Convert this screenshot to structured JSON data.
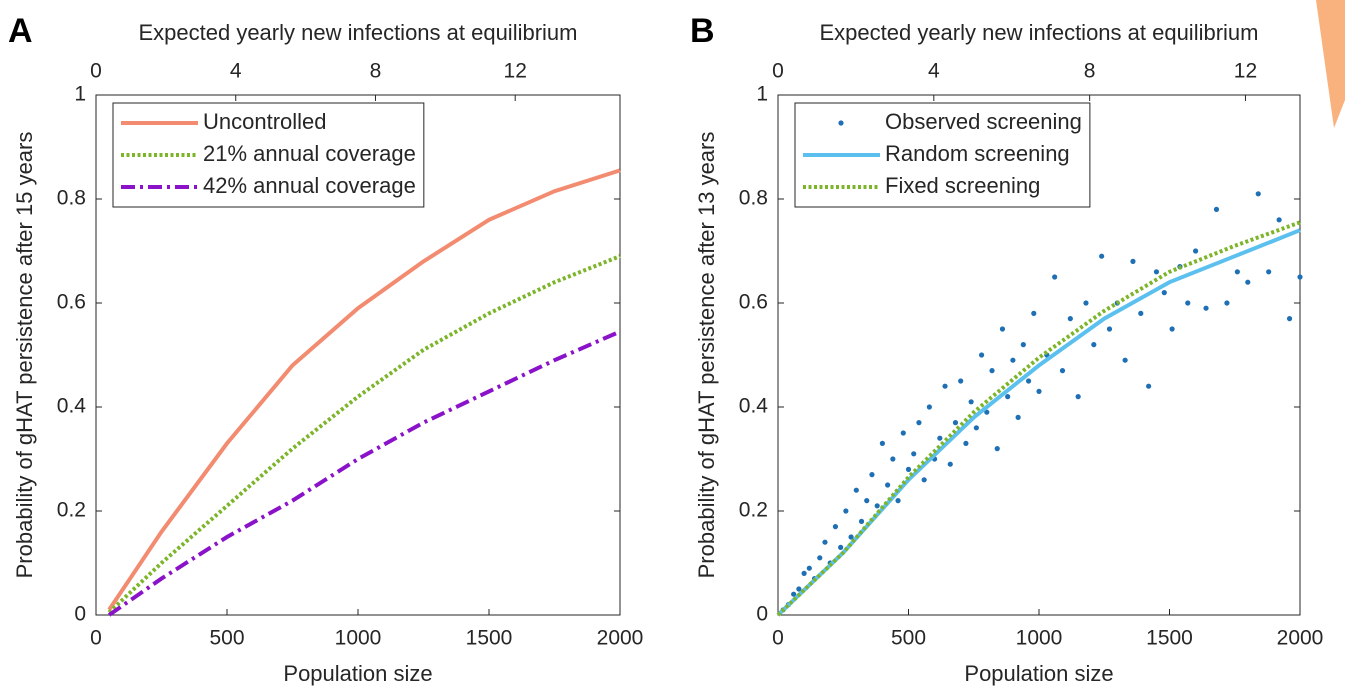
{
  "chart_data": [
    {
      "type": "line",
      "panel": "A",
      "xlabel": "Population size",
      "ylabel": "Probability of gHAT persistence after 15 years",
      "x2label": "Expected yearly new infections at equilibrium",
      "xlim": [
        0,
        2000
      ],
      "xticks": [
        0,
        500,
        1000,
        1500,
        2000
      ],
      "x2lim": [
        0,
        15
      ],
      "x2ticks": [
        0,
        4,
        8,
        12
      ],
      "ylim": [
        0,
        1
      ],
      "yticks": [
        0,
        0.2,
        0.4,
        0.6,
        0.8,
        1
      ],
      "legend": "upper left",
      "series": [
        {
          "name": "Uncontrolled",
          "color": "#f28b6f",
          "dash": "solid",
          "type": "line",
          "x": [
            50,
            250,
            500,
            750,
            1000,
            1250,
            1500,
            1750,
            2000
          ],
          "values": [
            0.01,
            0.16,
            0.33,
            0.48,
            0.59,
            0.68,
            0.76,
            0.815,
            0.855
          ]
        },
        {
          "name": "21% annual coverage",
          "color": "#7db52a",
          "dash": "dotted",
          "type": "line",
          "x": [
            50,
            250,
            500,
            750,
            1000,
            1250,
            1500,
            1750,
            2000
          ],
          "values": [
            0.005,
            0.1,
            0.21,
            0.32,
            0.42,
            0.51,
            0.58,
            0.64,
            0.69
          ]
        },
        {
          "name": "42% annual coverage",
          "color": "#8a12c8",
          "dash": "dashdot",
          "type": "line",
          "x": [
            50,
            250,
            500,
            750,
            1000,
            1250,
            1500,
            1750,
            2000
          ],
          "values": [
            0,
            0.07,
            0.15,
            0.22,
            0.3,
            0.37,
            0.43,
            0.49,
            0.545
          ]
        }
      ]
    },
    {
      "type": "line",
      "panel": "B",
      "xlabel": "Population size",
      "ylabel": "Probability of gHAT persistence after 13 years",
      "x2label": "Expected yearly new infections at equilibrium",
      "xlim": [
        0,
        2000
      ],
      "xticks": [
        0,
        500,
        1000,
        1500,
        2000
      ],
      "x2lim": [
        0,
        13.4
      ],
      "x2ticks": [
        0,
        4,
        8,
        12
      ],
      "ylim": [
        0,
        1
      ],
      "yticks": [
        0,
        0.2,
        0.4,
        0.6,
        0.8,
        1
      ],
      "legend": "upper left",
      "series": [
        {
          "name": "Observed screening",
          "color": "#1f6fb5",
          "type": "scatter",
          "x": [
            20,
            40,
            60,
            80,
            100,
            120,
            140,
            160,
            180,
            200,
            220,
            240,
            260,
            280,
            300,
            320,
            340,
            360,
            380,
            400,
            420,
            440,
            460,
            480,
            500,
            520,
            540,
            560,
            580,
            600,
            620,
            640,
            660,
            680,
            700,
            720,
            740,
            760,
            780,
            800,
            820,
            840,
            860,
            880,
            900,
            920,
            940,
            960,
            980,
            1000,
            1030,
            1060,
            1090,
            1120,
            1150,
            1180,
            1210,
            1240,
            1270,
            1300,
            1330,
            1360,
            1390,
            1420,
            1450,
            1480,
            1510,
            1540,
            1570,
            1600,
            1640,
            1680,
            1720,
            1760,
            1800,
            1840,
            1880,
            1920,
            1960,
            2000
          ],
          "values": [
            0.01,
            0.02,
            0.04,
            0.05,
            0.08,
            0.09,
            0.07,
            0.11,
            0.14,
            0.1,
            0.17,
            0.13,
            0.2,
            0.15,
            0.24,
            0.18,
            0.22,
            0.27,
            0.21,
            0.33,
            0.25,
            0.3,
            0.22,
            0.35,
            0.28,
            0.31,
            0.37,
            0.26,
            0.4,
            0.3,
            0.34,
            0.44,
            0.29,
            0.37,
            0.45,
            0.33,
            0.41,
            0.36,
            0.5,
            0.39,
            0.47,
            0.32,
            0.55,
            0.42,
            0.49,
            0.38,
            0.52,
            0.45,
            0.58,
            0.43,
            0.5,
            0.65,
            0.47,
            0.57,
            0.42,
            0.6,
            0.52,
            0.69,
            0.55,
            0.6,
            0.49,
            0.68,
            0.58,
            0.44,
            0.66,
            0.62,
            0.55,
            0.67,
            0.6,
            0.7,
            0.59,
            0.78,
            0.6,
            0.66,
            0.64,
            0.81,
            0.66,
            0.76,
            0.57,
            0.65
          ]
        },
        {
          "name": "Random screening",
          "color": "#5cc0ef",
          "dash": "solid",
          "type": "line",
          "x": [
            0,
            250,
            500,
            750,
            1000,
            1250,
            1500,
            1750,
            2000
          ],
          "values": [
            0,
            0.12,
            0.26,
            0.38,
            0.48,
            0.57,
            0.64,
            0.69,
            0.74
          ]
        },
        {
          "name": "Fixed screening",
          "color": "#7db52a",
          "dash": "dotted",
          "type": "line",
          "x": [
            0,
            250,
            500,
            750,
            1000,
            1250,
            1500,
            1750,
            2000
          ],
          "values": [
            0,
            0.12,
            0.265,
            0.39,
            0.495,
            0.585,
            0.66,
            0.71,
            0.755
          ]
        }
      ]
    }
  ]
}
